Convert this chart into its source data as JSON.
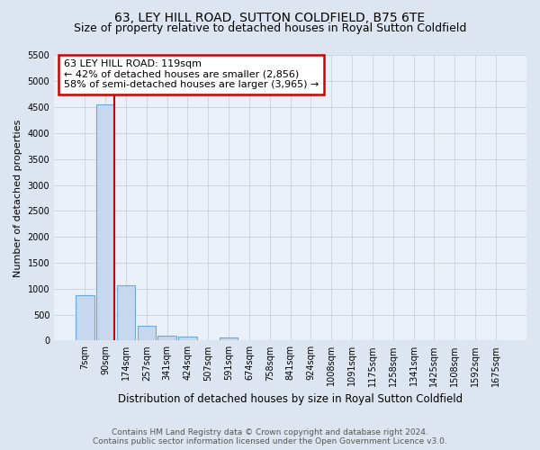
{
  "title": "63, LEY HILL ROAD, SUTTON COLDFIELD, B75 6TE",
  "subtitle": "Size of property relative to detached houses in Royal Sutton Coldfield",
  "xlabel": "Distribution of detached houses by size in Royal Sutton Coldfield",
  "ylabel": "Number of detached properties",
  "categories": [
    "7sqm",
    "90sqm",
    "174sqm",
    "257sqm",
    "341sqm",
    "424sqm",
    "507sqm",
    "591sqm",
    "674sqm",
    "758sqm",
    "841sqm",
    "924sqm",
    "1008sqm",
    "1091sqm",
    "1175sqm",
    "1258sqm",
    "1341sqm",
    "1425sqm",
    "1508sqm",
    "1592sqm",
    "1675sqm"
  ],
  "values": [
    880,
    4560,
    1060,
    285,
    100,
    80,
    0,
    65,
    0,
    0,
    0,
    0,
    0,
    0,
    0,
    0,
    0,
    0,
    0,
    0,
    0
  ],
  "bar_color": "#c5d8ef",
  "bar_edge_color": "#6aaad4",
  "vline_color": "#cc0000",
  "vline_x": 1.45,
  "annotation_text_line1": "63 LEY HILL ROAD: 119sqm",
  "annotation_text_line2": "← 42% of detached houses are smaller (2,856)",
  "annotation_text_line3": "58% of semi-detached houses are larger (3,965) →",
  "annotation_box_color": "#ffffff",
  "annotation_box_edge": "#cc0000",
  "ylim": [
    0,
    5500
  ],
  "yticks": [
    0,
    500,
    1000,
    1500,
    2000,
    2500,
    3000,
    3500,
    4000,
    4500,
    5000,
    5500
  ],
  "footer_line1": "Contains HM Land Registry data © Crown copyright and database right 2024.",
  "footer_line2": "Contains public sector information licensed under the Open Government Licence v3.0.",
  "bg_color": "#dde6f0",
  "plot_bg_color": "#eaf0f8",
  "grid_color": "#c0ccd8",
  "title_fontsize": 10,
  "subtitle_fontsize": 9,
  "tick_fontsize": 7,
  "ylabel_fontsize": 8,
  "xlabel_fontsize": 8.5,
  "footer_fontsize": 6.5,
  "annot_fontsize": 8
}
